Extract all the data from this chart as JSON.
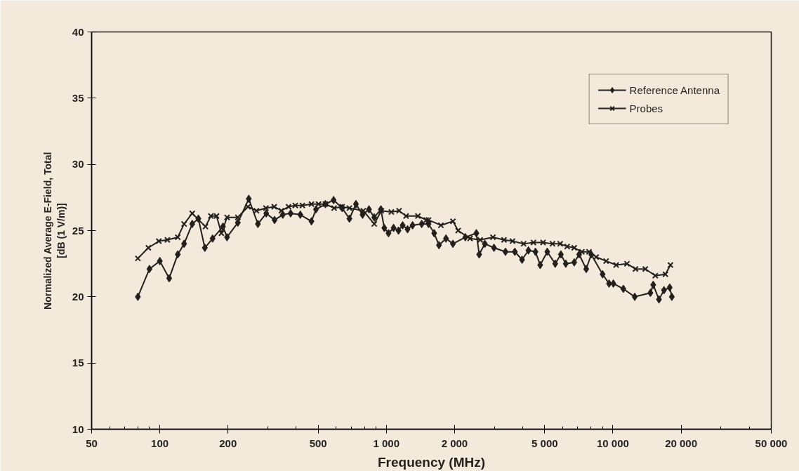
{
  "chart_data": {
    "type": "line",
    "xlabel": "Frequency (MHz)",
    "ylabel": "Normalized Average E-Field, Total\n[dB (1 V/m)]",
    "log": "x",
    "grid": false,
    "legend": "top right",
    "xlim": [
      50,
      50000
    ],
    "ylim": [
      10,
      40
    ],
    "xticks": [
      50,
      100,
      200,
      500,
      {
        "value": 1000,
        "label": "1 000"
      },
      {
        "value": 2000,
        "label": "2 000"
      },
      {
        "value": 5000,
        "label": "5 000"
      },
      {
        "value": 10000,
        "label": "10 000"
      },
      {
        "value": 20000,
        "label": "20 000"
      },
      {
        "value": 50000,
        "label": "50 000"
      },
      {
        "value": 60,
        "label": null
      },
      {
        "value": 70,
        "label": null
      },
      {
        "value": 80,
        "label": null
      },
      {
        "value": 90,
        "label": null
      },
      {
        "value": 300,
        "label": null
      },
      {
        "value": 400,
        "label": null
      },
      {
        "value": 600,
        "label": null
      },
      {
        "value": 700,
        "label": null
      },
      {
        "value": 800,
        "label": null
      },
      {
        "value": 900,
        "label": null
      },
      {
        "value": 3000,
        "label": null
      },
      {
        "value": 4000,
        "label": null
      },
      {
        "value": 6000,
        "label": null
      },
      {
        "value": 7000,
        "label": null
      },
      {
        "value": 8000,
        "label": null
      },
      {
        "value": 9000,
        "label": null
      },
      {
        "value": 30000,
        "label": null
      },
      {
        "value": 40000,
        "label": null
      }
    ],
    "yticks": [
      10,
      15,
      20,
      25,
      30,
      35,
      40
    ],
    "series": [
      {
        "name": "Reference Antenna",
        "color": "#231f1c",
        "marker": "diamond",
        "x": [
          80,
          90,
          100,
          110,
          120,
          128,
          139,
          148,
          158,
          171,
          190,
          198,
          221,
          247,
          271,
          295,
          321,
          349,
          378,
          417,
          467,
          489,
          538,
          585,
          638,
          687,
          734,
          785,
          838,
          884,
          946,
          979,
          1022,
          1076,
          1131,
          1180,
          1240,
          1305,
          1432,
          1535,
          1626,
          1707,
          1833,
          1967,
          2232,
          2496,
          2569,
          2720,
          2986,
          3356,
          3691,
          3971,
          4237,
          4551,
          4776,
          5131,
          5563,
          5892,
          6194,
          6749,
          7095,
          7624,
          8020,
          9006,
          9614,
          10044,
          11120,
          12485,
          14640,
          15070,
          15970,
          16800,
          17810,
          18200
        ],
        "values": [
          20.0,
          22.1,
          22.7,
          21.4,
          23.2,
          24.0,
          25.5,
          25.9,
          23.7,
          24.4,
          25.3,
          24.5,
          25.6,
          27.4,
          25.5,
          26.3,
          25.8,
          26.2,
          26.3,
          26.2,
          25.7,
          26.6,
          27.0,
          27.3,
          26.7,
          25.9,
          27.0,
          26.2,
          26.6,
          26.0,
          26.6,
          25.2,
          24.8,
          25.2,
          25.0,
          25.4,
          25.1,
          25.4,
          25.5,
          25.5,
          24.8,
          23.9,
          24.4,
          24.0,
          24.5,
          24.8,
          23.2,
          24.0,
          23.7,
          23.4,
          23.4,
          22.8,
          23.5,
          23.4,
          22.4,
          23.4,
          22.5,
          23.2,
          22.5,
          22.6,
          23.2,
          22.1,
          23.2,
          21.7,
          21.0,
          21.0,
          20.6,
          20.0,
          20.3,
          20.9,
          19.8,
          20.5,
          20.7,
          20.0
        ]
      },
      {
        "name": "Probes",
        "color": "#231f1c",
        "marker": "cross",
        "x": [
          80,
          89,
          99,
          108,
          120,
          128,
          139,
          159,
          168,
          178,
          187,
          198,
          221,
          245,
          267,
          294,
          320,
          344,
          370,
          396,
          426,
          467,
          502,
          538,
          588,
          638,
          687,
          791,
          884,
          950,
          1052,
          1138,
          1222,
          1378,
          1501,
          1535,
          1740,
          1967,
          2074,
          2340,
          2595,
          2954,
          3306,
          3604,
          4034,
          4459,
          4915,
          5413,
          5850,
          6283,
          6749,
          7296,
          7845,
          8437,
          9332,
          10336,
          11540,
          12570,
          13900,
          15380,
          17050,
          17950
        ],
        "values": [
          22.9,
          23.7,
          24.2,
          24.3,
          24.5,
          25.5,
          26.3,
          25.3,
          26.1,
          26.1,
          24.8,
          26.0,
          26.0,
          26.8,
          26.5,
          26.7,
          26.8,
          26.5,
          26.8,
          26.9,
          26.9,
          27.0,
          27.0,
          27.0,
          26.7,
          26.8,
          26.7,
          26.5,
          25.5,
          26.5,
          26.4,
          26.5,
          26.1,
          26.1,
          25.8,
          25.8,
          25.4,
          25.7,
          25.0,
          24.4,
          24.3,
          24.5,
          24.3,
          24.2,
          24.0,
          24.1,
          24.1,
          24.0,
          24.0,
          23.8,
          23.7,
          23.4,
          23.4,
          23.0,
          22.7,
          22.4,
          22.5,
          22.1,
          22.1,
          21.6,
          21.7,
          22.4
        ]
      }
    ]
  }
}
